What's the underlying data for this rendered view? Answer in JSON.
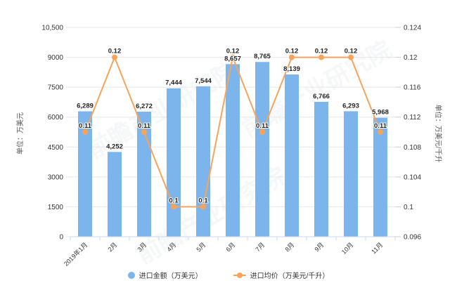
{
  "chart_data": {
    "type": "bar+line",
    "title": "",
    "categories": [
      "2019年1月",
      "2月",
      "3月",
      "4月",
      "5月",
      "6月",
      "7月",
      "8月",
      "9月",
      "10月",
      "11月"
    ],
    "series": [
      {
        "name": "进口金额（万美元）",
        "type": "bar",
        "axis": "left",
        "color": "#7cb5ec",
        "values": [
          6289,
          4252,
          6272,
          7444,
          7544,
          8657,
          8765,
          8139,
          6766,
          6293,
          5968
        ],
        "labels": [
          "6,289",
          "4,252",
          "6,272",
          "7,444",
          "7,544",
          "8,657",
          "8,765",
          "8,139",
          "6,766",
          "6,293",
          "5,968"
        ]
      },
      {
        "name": "进口均价（万美元/千升）",
        "type": "line",
        "axis": "right",
        "color": "#f7a35c",
        "values": [
          0.11,
          0.12,
          0.11,
          0.1,
          0.1,
          0.12,
          0.11,
          0.12,
          0.12,
          0.12,
          0.11
        ],
        "labels": [
          "0.11",
          "0.12",
          "0.11",
          "0.1",
          "0.1",
          "0.12",
          "0.11",
          "0.12",
          "0.12",
          "0.12",
          "0.11"
        ]
      }
    ],
    "ylabel": "单位：万美元",
    "y2label": "单位：万美元/千升",
    "xlabel": "",
    "ylim": [
      0,
      10500
    ],
    "y2lim": [
      0.096,
      0.124
    ],
    "yticks": [
      "0",
      "1500",
      "3000",
      "4500",
      "6000",
      "7500",
      "9000",
      "10,500"
    ],
    "y2ticks": [
      "0.096",
      "0.1",
      "0.104",
      "0.108",
      "0.112",
      "0.116",
      "0.12",
      "0.124"
    ],
    "grid": true,
    "legend_position": "bottom"
  },
  "axes": {
    "left_title": "单位：万美元",
    "right_title": "单位：万美元/千升"
  },
  "legend": {
    "bar_label": "进口金额（万美元）",
    "line_label": "进口均价（万美元/千升）"
  },
  "watermark": "前瞻产业研究院"
}
